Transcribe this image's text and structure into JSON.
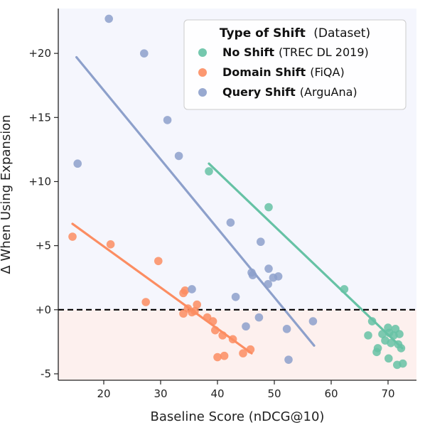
{
  "chart_data": {
    "type": "scatter",
    "title": "",
    "xlabel": "Baseline Score (nDCG@10)",
    "ylabel": "Δ When Using Expansion",
    "xlim": [
      12,
      75
    ],
    "ylim": [
      -5.5,
      23.5
    ],
    "x_ticks": [
      20,
      30,
      40,
      50,
      60,
      70
    ],
    "y_ticks": [
      {
        "value": -5,
        "label": "-5"
      },
      {
        "value": 0,
        "label": "+0"
      },
      {
        "value": 5,
        "label": "+5"
      },
      {
        "value": 10,
        "label": "+10"
      },
      {
        "value": 15,
        "label": "+15"
      },
      {
        "value": 20,
        "label": "+20"
      }
    ],
    "grid": false,
    "reference_line": {
      "y": 0,
      "style": "dashed",
      "color": "#000000"
    },
    "region_colors": {
      "above_zero": "#f5f6fd",
      "below_zero": "#fdf0ee"
    },
    "legend": {
      "title_bold": "Type of Shift",
      "title_rest": "(Dataset)",
      "position": "top-right"
    },
    "series": [
      {
        "name_bold": "No Shift",
        "name_rest": "(TREC DL 2019)",
        "color": "#66c2a5",
        "points": [
          [
            38.5,
            10.8
          ],
          [
            49,
            8.0
          ],
          [
            62.3,
            1.6
          ],
          [
            67.2,
            -0.9
          ],
          [
            66.5,
            -2.0
          ],
          [
            68.2,
            -3.0
          ],
          [
            68.0,
            -3.3
          ],
          [
            69.0,
            -1.9
          ],
          [
            69.5,
            -2.4
          ],
          [
            70.0,
            -1.4
          ],
          [
            70.2,
            -1.8
          ],
          [
            70.5,
            -2.6
          ],
          [
            71.0,
            -2.0
          ],
          [
            71.3,
            -1.5
          ],
          [
            71.8,
            -2.7
          ],
          [
            72.0,
            -1.9
          ],
          [
            72.3,
            -3.0
          ],
          [
            71.6,
            -4.3
          ],
          [
            72.6,
            -4.2
          ],
          [
            70.1,
            -3.8
          ]
        ],
        "fit": [
          [
            38.5,
            11.4
          ],
          [
            72.5,
            -3.0
          ]
        ]
      },
      {
        "name_bold": "Domain Shift",
        "name_rest": "(FiQA)",
        "color": "#fc8d62",
        "points": [
          [
            14.5,
            5.7
          ],
          [
            21.2,
            5.1
          ],
          [
            29.6,
            3.8
          ],
          [
            27.4,
            0.6
          ],
          [
            34.0,
            1.3
          ],
          [
            34.3,
            1.5
          ],
          [
            34.0,
            -0.3
          ],
          [
            34.8,
            0.1
          ],
          [
            35.5,
            -0.2
          ],
          [
            36.4,
            0.4
          ],
          [
            36.0,
            -0.1
          ],
          [
            38.2,
            -0.6
          ],
          [
            39.2,
            -0.9
          ],
          [
            39.6,
            -1.6
          ],
          [
            40.9,
            -2.0
          ],
          [
            42.7,
            -2.3
          ],
          [
            44.5,
            -3.4
          ],
          [
            45.8,
            -3.1
          ],
          [
            41.2,
            -3.6
          ],
          [
            40.0,
            -3.7
          ]
        ],
        "fit": [
          [
            14.5,
            6.7
          ],
          [
            46,
            -3.4
          ]
        ]
      },
      {
        "name_bold": "Query Shift",
        "name_rest": "(ArguAna)",
        "color": "#8da0cb",
        "points": [
          [
            20.9,
            22.7
          ],
          [
            27.1,
            20.0
          ],
          [
            15.4,
            11.4
          ],
          [
            31.2,
            14.8
          ],
          [
            33.2,
            12.0
          ],
          [
            42.3,
            6.8
          ],
          [
            47.6,
            5.3
          ],
          [
            49.0,
            3.2
          ],
          [
            46.0,
            2.9
          ],
          [
            46.2,
            2.7
          ],
          [
            49.8,
            2.5
          ],
          [
            50.7,
            2.6
          ],
          [
            48.9,
            2.0
          ],
          [
            35.5,
            1.6
          ],
          [
            43.2,
            1.0
          ],
          [
            47.3,
            -0.6
          ],
          [
            45.0,
            -1.3
          ],
          [
            52.2,
            -1.5
          ],
          [
            56.8,
            -0.9
          ],
          [
            52.5,
            -3.9
          ]
        ],
        "fit": [
          [
            15.2,
            19.7
          ],
          [
            57,
            -2.8
          ]
        ]
      }
    ]
  }
}
